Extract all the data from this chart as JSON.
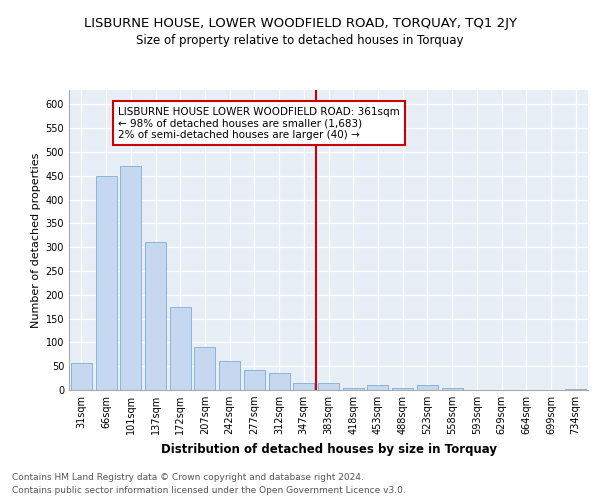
{
  "title": "LISBURNE HOUSE, LOWER WOODFIELD ROAD, TORQUAY, TQ1 2JY",
  "subtitle": "Size of property relative to detached houses in Torquay",
  "xlabel": "Distribution of detached houses by size in Torquay",
  "ylabel": "Number of detached properties",
  "footer1": "Contains HM Land Registry data © Crown copyright and database right 2024.",
  "footer2": "Contains public sector information licensed under the Open Government Licence v3.0.",
  "categories": [
    "31sqm",
    "66sqm",
    "101sqm",
    "137sqm",
    "172sqm",
    "207sqm",
    "242sqm",
    "277sqm",
    "312sqm",
    "347sqm",
    "383sqm",
    "418sqm",
    "453sqm",
    "488sqm",
    "523sqm",
    "558sqm",
    "593sqm",
    "629sqm",
    "664sqm",
    "699sqm",
    "734sqm"
  ],
  "values": [
    57,
    450,
    470,
    310,
    175,
    90,
    60,
    42,
    35,
    15,
    15,
    5,
    10,
    5,
    10,
    5,
    0,
    0,
    0,
    0,
    2
  ],
  "bar_color": "#c5d8ef",
  "bar_edge_color": "#7aafd4",
  "vline_x_index": 9,
  "vline_color": "#cc0000",
  "annotation_text": "LISBURNE HOUSE LOWER WOODFIELD ROAD: 361sqm\n← 98% of detached houses are smaller (1,683)\n2% of semi-detached houses are larger (40) →",
  "annotation_box_color": "#cc0000",
  "annotation_bg": "#ffffff",
  "ylim": [
    0,
    630
  ],
  "yticks": [
    0,
    50,
    100,
    150,
    200,
    250,
    300,
    350,
    400,
    450,
    500,
    550,
    600
  ],
  "fig_bg_color": "#ffffff",
  "plot_bg_color": "#e8eef6",
  "title_fontsize": 9.5,
  "subtitle_fontsize": 8.5,
  "xlabel_fontsize": 8.5,
  "ylabel_fontsize": 8,
  "tick_fontsize": 7,
  "footer_fontsize": 6.5
}
